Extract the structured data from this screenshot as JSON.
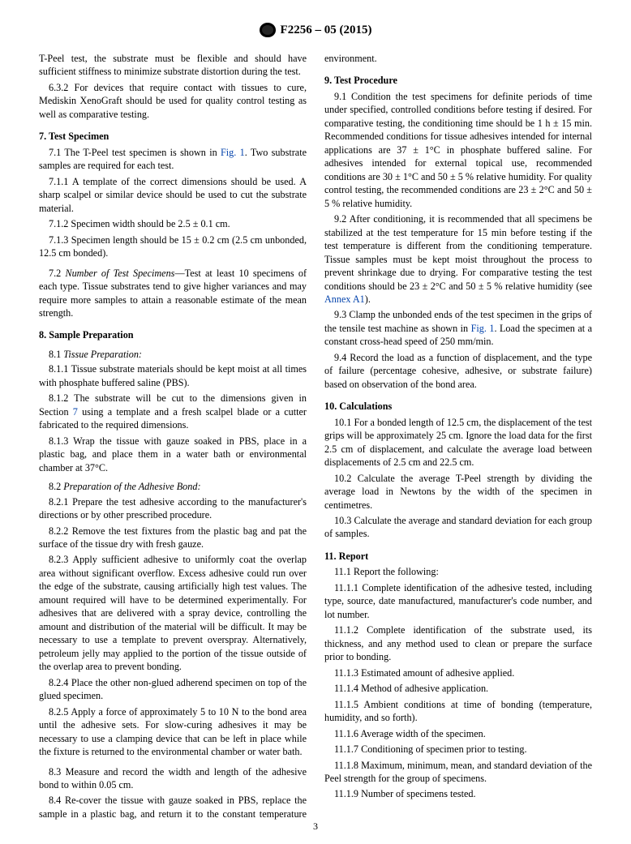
{
  "header": {
    "designation": "F2256 – 05 (2015)"
  },
  "links": {
    "fig1": "Fig. 1",
    "annexA1": "Annex A1",
    "section7": "7"
  },
  "p": {
    "intro_tpeel": "T-Peel test, the substrate must be flexible and should have sufficient stiffness to minimize substrate distortion during the test.",
    "p632": "6.3.2 For devices that require contact with tissues to cure, Mediskin XenoGraft should be used for quality control testing as well as comparative testing.",
    "s7": "7. Test Specimen",
    "p71a": "7.1 The T-Peel test specimen is shown in ",
    "p71b": ". Two substrate samples are required for each test.",
    "p711": "7.1.1 A template of the correct dimensions should be used. A sharp scalpel or similar device should be used to cut the substrate material.",
    "p712": "7.1.2 Specimen width should be 2.5 ± 0.1 cm.",
    "p713": "7.1.3 Specimen length should be 15 ± 0.2 cm (2.5 cm unbonded, 12.5 cm bonded).",
    "p72_lead": "7.2 ",
    "p72_it": "Number of Test Specimens",
    "p72_body": "—Test at least 10 specimens of each type. Tissue substrates tend to give higher variances and may require more samples to attain a reasonable estimate of the mean strength.",
    "s8": "8. Sample Preparation",
    "p81_lead": "8.1 ",
    "p81_it": "Tissue Preparation:",
    "p811": "8.1.1 Tissue substrate materials should be kept moist at all times with phosphate buffered saline (PBS).",
    "p812a": "8.1.2 The substrate will be cut to the dimensions given in Section ",
    "p812b": " using a template and a fresh scalpel blade or a cutter fabricated to the required dimensions.",
    "p813": "8.1.3 Wrap the tissue with gauze soaked in PBS, place in a plastic bag, and place them in a water bath or environmental chamber at 37°C.",
    "p82_lead": "8.2 ",
    "p82_it": "Preparation of the Adhesive Bond:",
    "p821": "8.2.1 Prepare the test adhesive according to the manufacturer's directions or by other prescribed procedure.",
    "p822": "8.2.2 Remove the test fixtures from the plastic bag and pat the surface of the tissue dry with fresh gauze.",
    "p823": "8.2.3 Apply sufficient adhesive to uniformly coat the overlap area without significant overflow. Excess adhesive could run over the edge of the substrate, causing artificially high test values. The amount required will have to be determined experimentally. For adhesives that are delivered with a spray device, controlling the amount and distribution of the material will be difficult. It may be necessary to use a template to prevent overspray. Alternatively, petroleum jelly may applied to the portion of the tissue outside of the overlap area to prevent bonding.",
    "p824": "8.2.4 Place the other non-glued adherend specimen on top of the glued specimen.",
    "p825": "8.2.5 Apply a force of approximately 5 to 10 N to the bond area until the adhesive sets. For slow-curing adhesives it may be necessary to use a clamping device that can be left in place while the fixture is returned to the environmental chamber or water bath.",
    "p83": "8.3 Measure and record the width and length of the adhesive bond to within 0.05 cm.",
    "p84": "8.4 Re-cover the tissue with gauze soaked in PBS, replace the sample in a plastic bag, and return it to the constant temperature environment.",
    "s9": "9. Test Procedure",
    "p91": "9.1 Condition the test specimens for definite periods of time under specified, controlled conditions before testing if desired. For comparative testing, the conditioning time should be 1 h ± 15 min. Recommended conditions for tissue adhesives intended for internal applications are 37 ± 1°C in phosphate buffered saline. For adhesives intended for external topical use, recommended conditions are 30 ± 1°C and 50 ± 5 % relative humidity. For quality control testing, the recommended conditions are 23 ± 2°C and 50 ± 5 % relative humidity.",
    "p92a": "9.2 After conditioning, it is recommended that all specimens be stabilized at the test temperature for 15 min before testing if the test temperature is different from the conditioning temperature. Tissue samples must be kept moist throughout the process to prevent shrinkage due to drying. For comparative testing the test conditions should be 23 ± 2°C and 50 ± 5 % relative humidity (see ",
    "p92b": ").",
    "p93a": "9.3 Clamp the unbonded ends of the test specimen in the grips of the tensile test machine as shown in ",
    "p93b": ". Load the specimen at a constant cross-head speed of 250 mm/min.",
    "p94": "9.4 Record the load as a function of displacement, and the type of failure (percentage cohesive, adhesive, or substrate failure) based on observation of the bond area.",
    "s10": "10. Calculations",
    "p101": "10.1 For a bonded length of 12.5 cm, the displacement of the test grips will be approximately 25 cm. Ignore the load data for the first 2.5 cm of displacement, and calculate the average load between displacements of 2.5 cm and 22.5 cm.",
    "p102": "10.2 Calculate the average T-Peel strength by dividing the average load in Newtons by the width of the specimen in centimetres.",
    "p103": "10.3 Calculate the average and standard deviation for each group of samples.",
    "s11": "11. Report",
    "p111": "11.1 Report the following:",
    "p1111": "11.1.1 Complete identification of the adhesive tested, including type, source, date manufactured, manufacturer's code number, and lot number.",
    "p1112": "11.1.2 Complete identification of the substrate used, its thickness, and any method used to clean or prepare the surface prior to bonding.",
    "p1113": "11.1.3 Estimated amount of adhesive applied.",
    "p1114": "11.1.4 Method of adhesive application.",
    "p1115": "11.1.5 Ambient conditions at time of bonding (temperature, humidity, and so forth).",
    "p1116": "11.1.6 Average width of the specimen.",
    "p1117": "11.1.7 Conditioning of specimen prior to testing.",
    "p1118": "11.1.8 Maximum, minimum, mean, and standard deviation of the Peel strength for the group of specimens.",
    "p1119": "11.1.9 Number of specimens tested."
  },
  "pagenum": "3"
}
